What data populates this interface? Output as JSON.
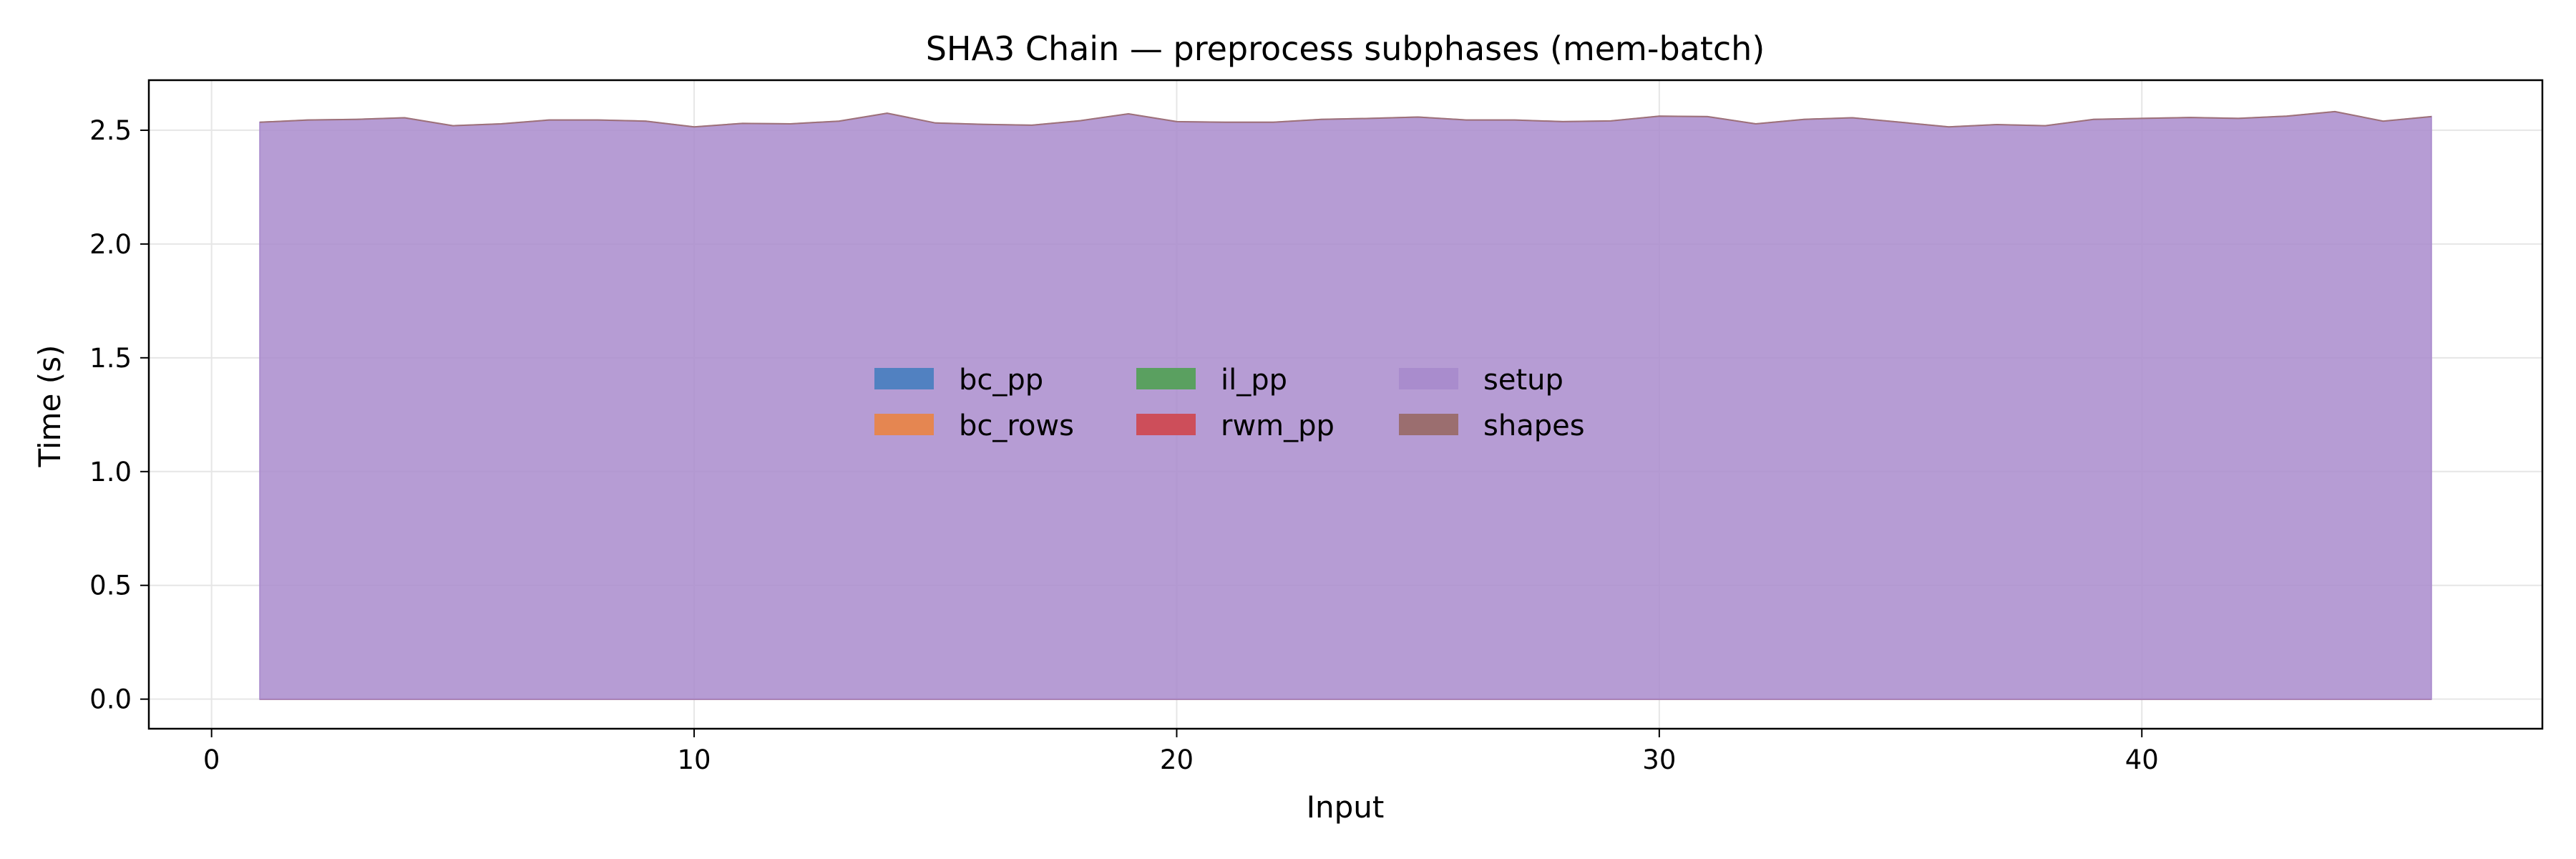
{
  "chart_data": {
    "type": "area",
    "title": "SHA3 Chain — preprocess subphases (mem-batch)",
    "xlabel": "Input",
    "ylabel": "Time (s)",
    "xlim": [
      -1.3,
      48.3
    ],
    "ylim": [
      -0.13,
      2.72
    ],
    "xticks": [
      0,
      10,
      20,
      30,
      40
    ],
    "yticks": [
      0.0,
      0.5,
      1.0,
      1.5,
      2.0,
      2.5
    ],
    "ytick_labels": [
      "0.0",
      "0.5",
      "1.0",
      "1.5",
      "2.0",
      "2.5"
    ],
    "grid": true,
    "stacked": true,
    "legend": {
      "placement": "center",
      "columns": 4
    },
    "x": [
      1,
      2,
      3,
      4,
      5,
      6,
      7,
      8,
      9,
      10,
      11,
      12,
      13,
      14,
      15,
      16,
      17,
      18,
      19,
      20,
      21,
      22,
      23,
      24,
      25,
      26,
      27,
      28,
      29,
      30,
      31,
      32,
      33,
      34,
      35,
      36,
      37,
      38,
      39,
      40,
      41,
      42,
      43,
      44,
      45,
      46
    ],
    "series": [
      {
        "name": "bc_pp",
        "color": "#4c7fc0",
        "values": [
          0,
          0,
          0,
          0,
          0,
          0,
          0,
          0,
          0,
          0,
          0,
          0,
          0,
          0,
          0,
          0,
          0,
          0,
          0,
          0,
          0,
          0,
          0,
          0,
          0,
          0,
          0,
          0,
          0,
          0,
          0,
          0,
          0,
          0,
          0,
          0,
          0,
          0,
          0,
          0,
          0,
          0,
          0,
          0,
          0,
          0
        ]
      },
      {
        "name": "bc_rows",
        "color": "#e8854a",
        "values": [
          0,
          0,
          0,
          0,
          0,
          0,
          0,
          0,
          0,
          0,
          0,
          0,
          0,
          0,
          0,
          0,
          0,
          0,
          0,
          0,
          0,
          0,
          0,
          0,
          0,
          0,
          0,
          0,
          0,
          0,
          0,
          0,
          0,
          0,
          0,
          0,
          0,
          0,
          0,
          0,
          0,
          0,
          0,
          0,
          0,
          0
        ]
      },
      {
        "name": "il_pp",
        "color": "#55a05a",
        "values": [
          0,
          0,
          0,
          0,
          0,
          0,
          0,
          0,
          0,
          0,
          0,
          0,
          0,
          0,
          0,
          0,
          0,
          0,
          0,
          0,
          0,
          0,
          0,
          0,
          0,
          0,
          0,
          0,
          0,
          0,
          0,
          0,
          0,
          0,
          0,
          0,
          0,
          0,
          0,
          0,
          0,
          0,
          0,
          0,
          0,
          0
        ]
      },
      {
        "name": "rwm_pp",
        "color": "#cf4a53",
        "values": [
          0,
          0,
          0,
          0,
          0,
          0,
          0,
          0,
          0,
          0,
          0,
          0,
          0,
          0,
          0,
          0,
          0,
          0,
          0,
          0,
          0,
          0,
          0,
          0,
          0,
          0,
          0,
          0,
          0,
          0,
          0,
          0,
          0,
          0,
          0,
          0,
          0,
          0,
          0,
          0,
          0,
          0,
          0,
          0,
          0,
          0
        ]
      },
      {
        "name": "setup",
        "color": "#a98bcc",
        "values": [
          2.535,
          2.545,
          2.548,
          2.555,
          2.52,
          2.528,
          2.545,
          2.545,
          2.54,
          2.515,
          2.53,
          2.528,
          2.54,
          2.575,
          2.532,
          2.526,
          2.522,
          2.542,
          2.572,
          2.538,
          2.535,
          2.535,
          2.548,
          2.552,
          2.558,
          2.545,
          2.545,
          2.538,
          2.541,
          2.562,
          2.56,
          2.528,
          2.548,
          2.555,
          2.535,
          2.515,
          2.525,
          2.52,
          2.548,
          2.552,
          2.556,
          2.552,
          2.562,
          2.582,
          2.54,
          2.56
        ]
      },
      {
        "name": "shapes",
        "color": "#9a6b69",
        "values": [
          0,
          0,
          0,
          0,
          0,
          0,
          0,
          0,
          0,
          0,
          0,
          0,
          0,
          0,
          0,
          0,
          0,
          0,
          0,
          0,
          0,
          0,
          0,
          0,
          0,
          0,
          0,
          0,
          0,
          0,
          0,
          0,
          0,
          0,
          0,
          0,
          0,
          0,
          0,
          0,
          0,
          0,
          0,
          0,
          0,
          0
        ]
      }
    ]
  }
}
